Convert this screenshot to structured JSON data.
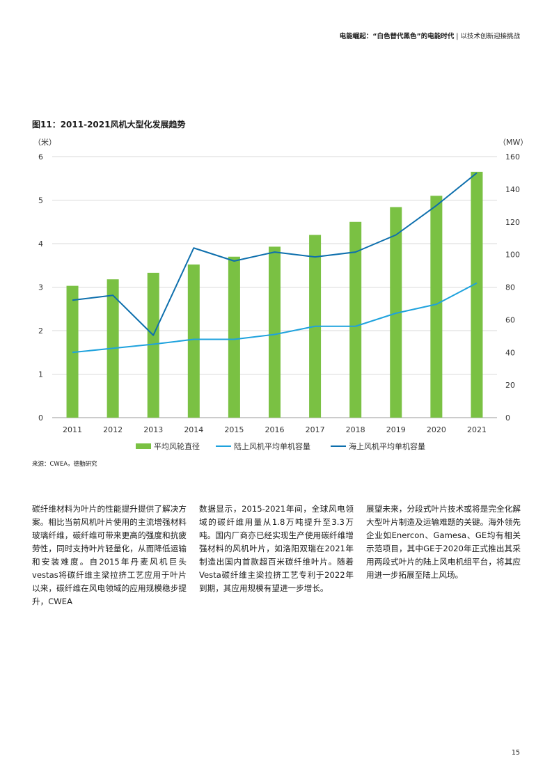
{
  "header": {
    "title": "电能崛起：“白色替代黑色”的电能时代",
    "separator": "|",
    "subtitle": "以技术创新迎接挑战"
  },
  "figure": {
    "title": "图11：2011-2021风机大型化发展趋势",
    "source": "来源：CWEA，德勤研究"
  },
  "chart_data": {
    "type": "bar",
    "categories": [
      "2011",
      "2012",
      "2013",
      "2014",
      "2015",
      "2016",
      "2017",
      "2018",
      "2019",
      "2020",
      "2021"
    ],
    "left_axis": {
      "unit": "（米）",
      "min": 0,
      "max": 6,
      "ticks": [
        0,
        1,
        2,
        3,
        4,
        5,
        6
      ]
    },
    "right_axis": {
      "unit": "（MW）",
      "min": 0,
      "max": 160,
      "ticks": [
        0,
        20,
        40,
        60,
        80,
        100,
        120,
        140,
        160
      ]
    },
    "series": [
      {
        "name": "平均风轮直径",
        "type": "bar",
        "axis": "left",
        "color": "#7ac143",
        "values": [
          3.03,
          3.18,
          3.33,
          3.52,
          3.7,
          3.93,
          4.2,
          4.5,
          4.84,
          5.1,
          5.65
        ]
      },
      {
        "name": "陆上风机平均单机容量",
        "type": "line",
        "axis": "right",
        "color": "#1ea2dd",
        "values": [
          40,
          42.5,
          45,
          48,
          48,
          51,
          56,
          56,
          64,
          69.5,
          82.5
        ]
      },
      {
        "name": "海上风机平均单机容量",
        "type": "line",
        "axis": "right",
        "color": "#0d6fad",
        "values": [
          72,
          75,
          50.5,
          104,
          96,
          101.5,
          98.5,
          101.5,
          112,
          130,
          150
        ]
      }
    ],
    "grid": true,
    "legend": "bottom"
  },
  "body": {
    "col1": "碳纤维材料为叶片的性能提升提供了解决方案。相比当前风机叶片使用的主流增强材料玻璃纤维，碳纤维可带来更高的强度和抗疲劳性，同时支持叶片轻量化，从而降低运输和安装难度。自2015年丹麦风机巨头vestas将碳纤维主梁拉挤工艺应用于叶片以来，碳纤维在风电领域的应用规模稳步提升，CWEA",
    "col2": "数据显示，2015-2021年间，全球风电领域的碳纤维用量从1.8万吨提升至3.3万吨。国内厂商亦已经实现生产使用碳纤维增强材料的风机叶片，如洛阳双瑞在2021年制造出国内首款超百米碳纤维叶片。随着Vesta碳纤维主梁拉挤工艺专利于2022年到期，其应用规模有望进一步增长。",
    "col3": "展望未来，分段式叶片技术或将是完全化解大型叶片制造及运输难题的关键。海外领先企业如Enercon、Gamesa、GE均有相关示范项目，其中GE于2020年正式推出其采用两段式叶片的陆上风电机组平台，将其应用进一步拓展至陆上风场。"
  },
  "page_number": "15"
}
